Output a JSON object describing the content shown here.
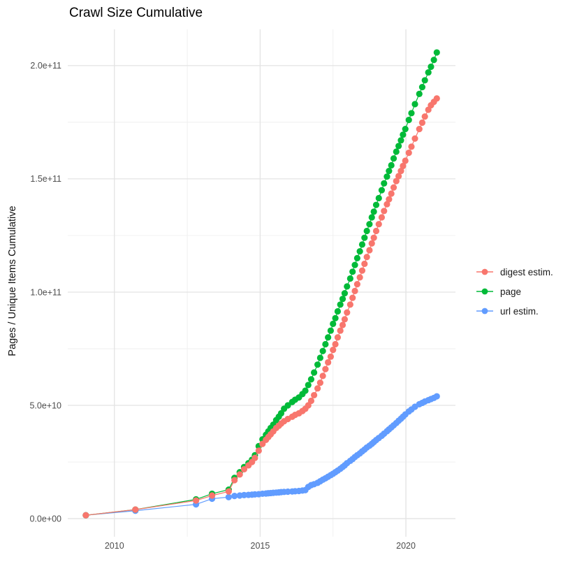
{
  "title": "Crawl Size Cumulative",
  "y_axis": {
    "label": "Pages / Unique Items Cumulative",
    "tick_labels": [
      "0.0e+00",
      "5.0e+10",
      "1.0e+11",
      "1.5e+11",
      "2.0e+11"
    ],
    "tick_values": [
      0,
      50000000000.0,
      100000000000.0,
      150000000000.0,
      200000000000.0
    ]
  },
  "x_axis": {
    "label": "",
    "tick_labels": [
      "2010",
      "2015",
      "2020"
    ],
    "tick_values": [
      2010,
      2015,
      2020
    ]
  },
  "legend": {
    "items": [
      {
        "label": "digest estim.",
        "color": "#F8766D"
      },
      {
        "label": "page",
        "color": "#00BA38"
      },
      {
        "label": "url estim.",
        "color": "#619CFF"
      }
    ]
  },
  "colors": {
    "digest_estim": "#F8766D",
    "page": "#00BA38",
    "url_estim": "#619CFF",
    "grid_major": "#e3e3e3",
    "grid_minor": "#efefef",
    "axis_text": "#4d4d4d"
  },
  "chart_data": {
    "type": "scatter",
    "title": "Crawl Size Cumulative",
    "xlabel": "",
    "ylabel": "Pages / Unique Items Cumulative",
    "xlim": [
      2008.4,
      2021.7
    ],
    "ylim": [
      -8000000000.0,
      216000000000.0
    ],
    "x_major_ticks": [
      2010,
      2015,
      2020
    ],
    "x_minor_ticks": [
      2012.5,
      2017.5
    ],
    "y_major_ticks": [
      0,
      50000000000.0,
      100000000000.0,
      150000000000.0,
      200000000000.0
    ],
    "y_minor_ticks": [
      25000000000.0,
      75000000000.0,
      125000000000.0,
      175000000000.0
    ],
    "grid": true,
    "legend_position": "right",
    "points_with_lines": true,
    "x": [
      2009.02,
      2010.72,
      2012.8,
      2013.35,
      2013.92,
      2014.12,
      2014.3,
      2014.45,
      2014.6,
      2014.72,
      2014.82,
      2014.95,
      2015.08,
      2015.2,
      2015.28,
      2015.36,
      2015.45,
      2015.55,
      2015.64,
      2015.72,
      2015.82,
      2015.95,
      2016.1,
      2016.2,
      2016.33,
      2016.45,
      2016.55,
      2016.65,
      2016.75,
      2016.85,
      2016.97,
      2017.06,
      2017.15,
      2017.24,
      2017.33,
      2017.42,
      2017.5,
      2017.58,
      2017.66,
      2017.75,
      2017.83,
      2017.9,
      2017.98,
      2018.09,
      2018.17,
      2018.25,
      2018.33,
      2018.42,
      2018.5,
      2018.58,
      2018.66,
      2018.75,
      2018.83,
      2018.9,
      2018.98,
      2019.07,
      2019.17,
      2019.25,
      2019.35,
      2019.42,
      2019.5,
      2019.58,
      2019.67,
      2019.75,
      2019.83,
      2019.9,
      2019.98,
      2020.1,
      2020.19,
      2020.31,
      2020.46,
      2020.56,
      2020.65,
      2020.77,
      2020.86,
      2020.96,
      2021.06
    ],
    "series": [
      {
        "name": "digest estim.",
        "color": "#F8766D",
        "values": [
          1500000000.0,
          4000000000.0,
          8000000000.0,
          10200000000.0,
          12000000000.0,
          17000000000.0,
          19500000000.0,
          21800000000.0,
          23500000000.0,
          25000000000.0,
          26800000000.0,
          30000000000.0,
          33000000000.0,
          34800000000.0,
          36000000000.0,
          37200000000.0,
          38500000000.0,
          40000000000.0,
          41000000000.0,
          42000000000.0,
          43000000000.0,
          44000000000.0,
          45000000000.0,
          45800000000.0,
          46500000000.0,
          47500000000.0,
          48500000000.0,
          50000000000.0,
          52000000000.0,
          54500000000.0,
          57500000000.0,
          60000000000.0,
          63000000000.0,
          66000000000.0,
          69000000000.0,
          71500000000.0,
          74500000000.0,
          77000000000.0,
          80000000000.0,
          83000000000.0,
          85500000000.0,
          88000000000.0,
          91000000000.0,
          94500000000.0,
          97500000000.0,
          100500000000.0,
          103500000000.0,
          106500000000.0,
          109500000000.0,
          112500000000.0,
          115500000000.0,
          118500000000.0,
          121500000000.0,
          124000000000.0,
          127000000000.0,
          130000000000.0,
          133000000000.0,
          135800000000.0,
          138800000000.0,
          141000000000.0,
          143500000000.0,
          146200000000.0,
          149000000000.0,
          151200000000.0,
          153500000000.0,
          155700000000.0,
          158000000000.0,
          161500000000.0,
          164200000000.0,
          167800000000.0,
          172000000000.0,
          174800000000.0,
          177500000000.0,
          180500000000.0,
          182500000000.0,
          184000000000.0,
          185500000000.0
        ]
      },
      {
        "name": "page",
        "color": "#00BA38",
        "values": [
          1500000000.0,
          4000000000.0,
          8500000000.0,
          11000000000.0,
          12800000000.0,
          18000000000.0,
          20500000000.0,
          22800000000.0,
          24500000000.0,
          26000000000.0,
          28000000000.0,
          32000000000.0,
          35000000000.0,
          37000000000.0,
          38500000000.0,
          40000000000.0,
          41500000000.0,
          43500000000.0,
          45000000000.0,
          46500000000.0,
          48500000000.0,
          50000000000.0,
          51500000000.0,
          52500000000.0,
          53500000000.0,
          55000000000.0,
          56500000000.0,
          59000000000.0,
          61500000000.0,
          64500000000.0,
          68000000000.0,
          71000000000.0,
          74000000000.0,
          77000000000.0,
          80000000000.0,
          83000000000.0,
          86000000000.0,
          88500000000.0,
          91500000000.0,
          94500000000.0,
          97000000000.0,
          99500000000.0,
          102500000000.0,
          106000000000.0,
          109000000000.0,
          112000000000.0,
          115000000000.0,
          118000000000.0,
          121000000000.0,
          124000000000.0,
          127000000000.0,
          130000000000.0,
          133000000000.0,
          135500000000.0,
          138500000000.0,
          141500000000.0,
          145000000000.0,
          148000000000.0,
          151000000000.0,
          153500000000.0,
          156000000000.0,
          159000000000.0,
          162000000000.0,
          164500000000.0,
          167000000000.0,
          169500000000.0,
          172000000000.0,
          176000000000.0,
          179000000000.0,
          183000000000.0,
          187500000000.0,
          190500000000.0,
          193500000000.0,
          197000000000.0,
          199500000000.0,
          202500000000.0,
          205800000000.0
        ]
      },
      {
        "name": "url estim.",
        "color": "#619CFF",
        "values": [
          1500000000.0,
          3500000000.0,
          6300000000.0,
          8800000000.0,
          9500000000.0,
          10000000000.0,
          10200000000.0,
          10400000000.0,
          10500000000.0,
          10600000000.0,
          10700000000.0,
          10800000000.0,
          11000000000.0,
          11100000000.0,
          11200000000.0,
          11300000000.0,
          11400000000.0,
          11500000000.0,
          11600000000.0,
          11700000000.0,
          11800000000.0,
          11900000000.0,
          12000000000.0,
          12100000000.0,
          12200000000.0,
          12400000000.0,
          12600000000.0,
          14000000000.0,
          14800000000.0,
          15200000000.0,
          15800000000.0,
          16500000000.0,
          17200000000.0,
          17800000000.0,
          18500000000.0,
          19200000000.0,
          19800000000.0,
          20500000000.0,
          21200000000.0,
          22000000000.0,
          22800000000.0,
          23500000000.0,
          24500000000.0,
          25500000000.0,
          26300000000.0,
          27200000000.0,
          28000000000.0,
          28800000000.0,
          29700000000.0,
          30500000000.0,
          31400000000.0,
          32200000000.0,
          33000000000.0,
          33800000000.0,
          34700000000.0,
          35600000000.0,
          36600000000.0,
          37500000000.0,
          38600000000.0,
          39400000000.0,
          40300000000.0,
          41200000000.0,
          42200000000.0,
          43200000000.0,
          44100000000.0,
          45000000000.0,
          46000000000.0,
          47300000000.0,
          48200000000.0,
          49400000000.0,
          50500000000.0,
          51100000000.0,
          51700000000.0,
          52300000000.0,
          52800000000.0,
          53300000000.0,
          54000000000.0
        ]
      }
    ],
    "draw_order": [
      "url estim.",
      "page",
      "digest estim."
    ]
  }
}
